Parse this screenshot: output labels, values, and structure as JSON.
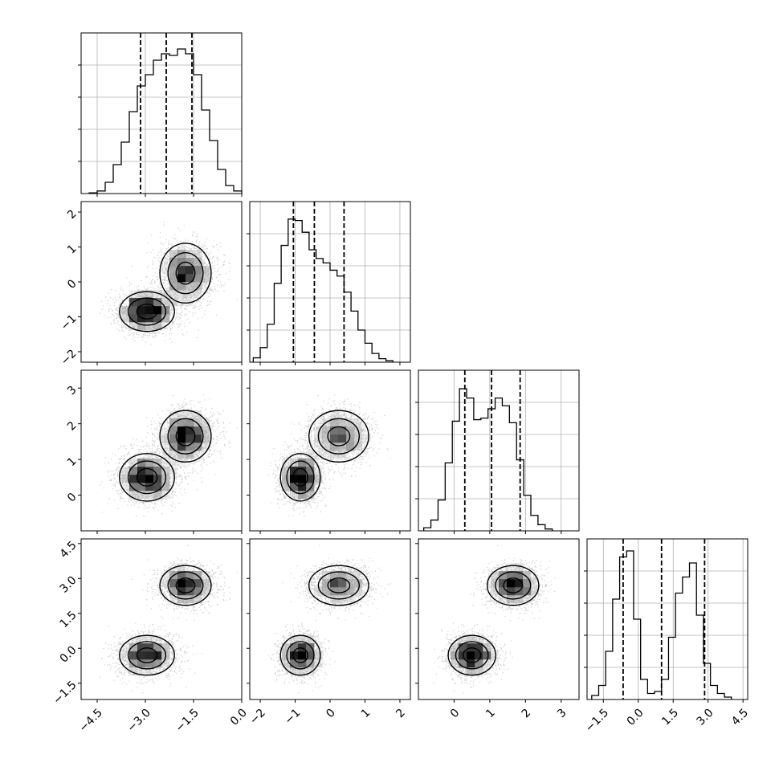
{
  "chart_data": {
    "type": "corner",
    "n_params": 4,
    "grid": true,
    "params": [
      {
        "range": [
          -5.0,
          0.0
        ],
        "ticks": [
          -4.5,
          -3.0,
          -1.5,
          0.0
        ],
        "tick_labels": [
          "−4.5",
          "−3.0",
          "−1.5",
          "0.0"
        ],
        "quantiles": [
          -3.15,
          -2.35,
          -1.55
        ],
        "hist": {
          "edges_start": -4.75,
          "bin_width": 0.25,
          "counts": [
            0.02,
            0.08,
            0.35,
            0.9,
            1.6,
            2.55,
            3.35,
            3.7,
            4.15,
            4.35,
            4.3,
            4.5,
            4.35,
            3.7,
            2.6,
            1.65,
            0.75,
            0.25,
            0.08
          ]
        },
        "hist_ylim": [
          0,
          5
        ]
      },
      {
        "range": [
          -2.3,
          2.3
        ],
        "ticks": [
          -2,
          -1,
          0,
          1,
          2
        ],
        "tick_labels": [
          "−2",
          "−1",
          "0",
          "1",
          "2"
        ],
        "quantiles": [
          -1.05,
          -0.45,
          0.4
        ],
        "hist": {
          "edges_start": -2.2,
          "bin_width": 0.2,
          "counts": [
            0.15,
            0.5,
            1.3,
            2.7,
            4.0,
            4.9,
            4.85,
            4.45,
            3.85,
            3.55,
            3.4,
            3.15,
            2.95,
            2.4,
            1.75,
            1.1,
            0.65,
            0.3,
            0.12,
            0.05
          ]
        },
        "hist_ylim": [
          0,
          5.5
        ]
      },
      {
        "range": [
          -1.0,
          3.5
        ],
        "ticks": [
          0,
          1,
          2,
          3
        ],
        "tick_labels": [
          "0",
          "1",
          "2",
          "3"
        ],
        "quantiles": [
          0.3,
          1.05,
          1.85
        ],
        "hist": {
          "edges_start": -0.85,
          "bin_width": 0.2,
          "counts": [
            0.1,
            0.35,
            1.0,
            2.2,
            3.55,
            4.6,
            4.3,
            3.6,
            3.65,
            3.95,
            4.3,
            4.05,
            3.5,
            2.3,
            1.15,
            0.5,
            0.2,
            0.06
          ]
        },
        "hist_ylim": [
          0,
          5.2
        ]
      },
      {
        "range": [
          -2.2,
          4.7
        ],
        "ticks": [
          -1.5,
          0.0,
          1.5,
          3.0,
          4.5
        ],
        "tick_labels": [
          "−1.5",
          "0.0",
          "1.5",
          "3.0",
          "4.5"
        ],
        "quantiles": [
          -0.65,
          1.0,
          2.85
        ],
        "hist": {
          "edges_start": -2.0,
          "bin_width": 0.3,
          "counts": [
            0.1,
            0.35,
            1.2,
            2.5,
            3.55,
            3.7,
            2.0,
            0.5,
            0.15,
            0.2,
            0.5,
            1.55,
            2.65,
            3.05,
            3.4,
            2.1,
            0.9,
            0.35,
            0.15,
            0.06
          ]
        },
        "hist_ylim": [
          0,
          4.0
        ]
      }
    ],
    "components": [
      {
        "weight": 0.5,
        "mean": [
          -2.95,
          -0.85,
          0.5,
          -0.3
        ],
        "sd": [
          0.45,
          0.3,
          0.35,
          0.45
        ]
      },
      {
        "weight": 0.5,
        "mean": [
          -1.75,
          0.25,
          1.65,
          2.7
        ],
        "sd": [
          0.42,
          0.45,
          0.38,
          0.45
        ]
      }
    ]
  }
}
